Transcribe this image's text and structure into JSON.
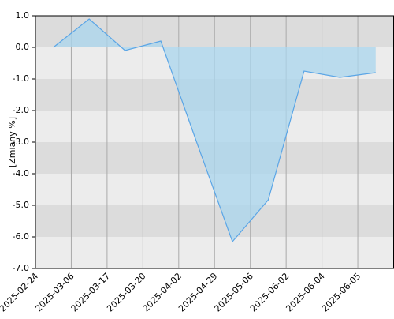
{
  "chart_data": {
    "type": "area",
    "y_label": "[Zmiany %]",
    "categories": [
      "2025-02-24",
      "2025-03-06",
      "2025-03-17",
      "2025-03-20",
      "2025-04-02",
      "2025-04-29",
      "2025-05-06",
      "2025-06-02",
      "2025-06-04",
      "2025-06-05"
    ],
    "values": [
      0.0,
      0.9,
      -0.1,
      0.2,
      -3.0,
      -6.15,
      -4.83,
      -0.75,
      -0.95,
      -0.8
    ],
    "color": "#5aa5e6",
    "fill": "#a9d6ee",
    "ylim": [
      -7,
      1
    ],
    "yticks": [
      {
        "value": 1,
        "label": "1.0"
      },
      {
        "value": 0,
        "label": "0.0"
      },
      {
        "value": -1,
        "label": "-1.0"
      },
      {
        "value": -2,
        "label": "-2.0"
      },
      {
        "value": -3,
        "label": "-3.0"
      },
      {
        "value": -4,
        "label": "-4.0"
      },
      {
        "value": -5,
        "label": "-5.0"
      },
      {
        "value": -6,
        "label": "-6.0"
      },
      {
        "value": -7,
        "label": "-7.0"
      }
    ],
    "grid": true
  }
}
